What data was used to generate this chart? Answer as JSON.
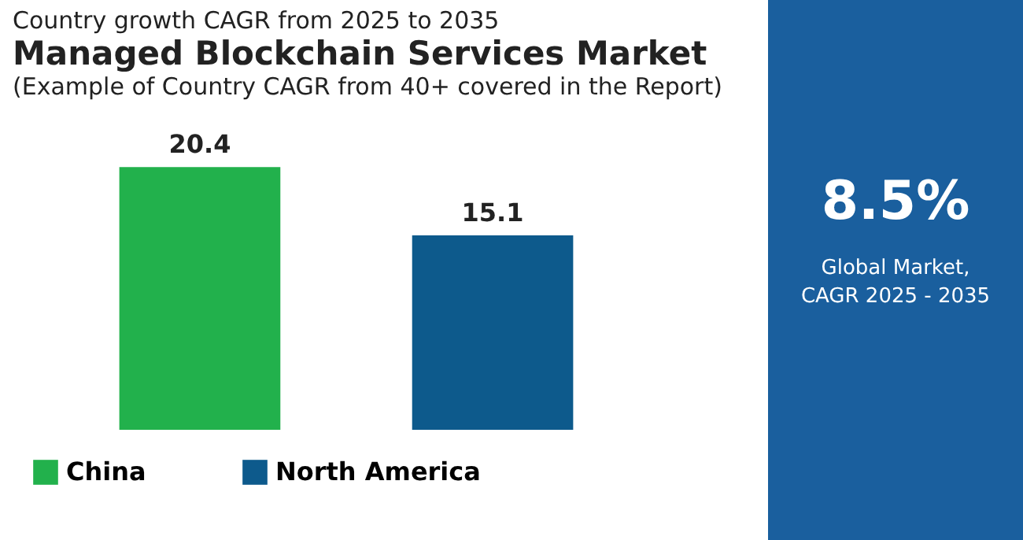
{
  "chart_data": [
    {
      "type": "bar",
      "title": "Managed Blockchain Services Market",
      "subtitle": "(Example of Country CAGR from 40+ covered in the Report)",
      "annotations": [
        "Country growth CAGR from 2025 to 2035"
      ],
      "categories": [
        null,
        null
      ],
      "series": [
        {
          "name": "China",
          "color": "#22b14c",
          "values": [
            20.4,
            null
          ]
        },
        {
          "name": "North America",
          "color": "#0d5a8c",
          "values": [
            null,
            15.1
          ]
        }
      ],
      "stacked": true,
      "data_labels": true,
      "legend": "bottom",
      "tick_labels": false
    },
    {
      "type": "other",
      "title": "8.5%",
      "annotations": [
        "Global Market,",
        "CAGR 2025 - 2035"
      ]
    }
  ]
}
